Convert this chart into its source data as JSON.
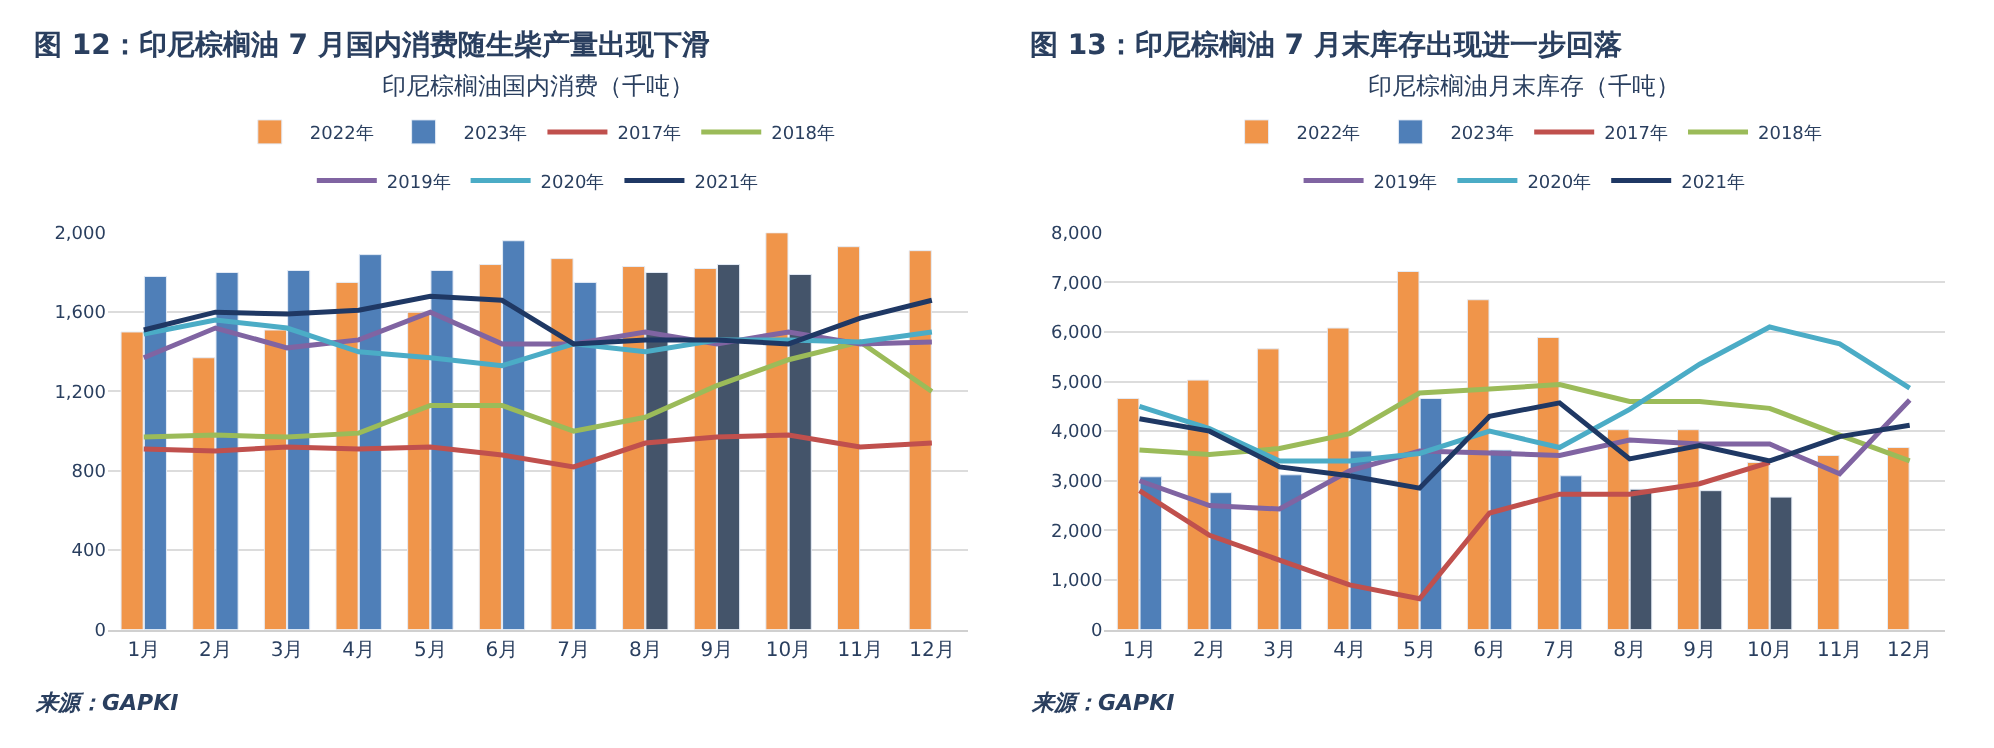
{
  "chart_data": [
    {
      "type": "bar",
      "title": "图 12：印尼棕榈油 7 月国内消费随生柴产量出现下滑",
      "subtitle": "印尼棕榈油国内消费（千吨）",
      "categories": [
        "1月",
        "2月",
        "3月",
        "4月",
        "5月",
        "6月",
        "7月",
        "8月",
        "9月",
        "10月",
        "11月",
        "12月"
      ],
      "series": [
        {
          "name": "2022年",
          "color": "#f0954a",
          "values": [
            1500,
            1370,
            1510,
            1750,
            1600,
            1840,
            1870,
            1830,
            1820,
            2000,
            1930,
            1910
          ]
        },
        {
          "name": "2023年",
          "color": "#4f7fb8",
          "colors": [
            "#4f7fb8",
            "#4f7fb8",
            "#4f7fb8",
            "#4f7fb8",
            "#4f7fb8",
            "#4f7fb8",
            "#4f7fb8",
            "#44546a",
            "#44546a",
            "#44546a",
            null,
            null
          ],
          "values": [
            1780,
            1800,
            1810,
            1890,
            1810,
            1960,
            1750,
            1800,
            1840,
            1790,
            null,
            null
          ]
        },
        {
          "name": "2017年",
          "type": "line",
          "color": "#c0504d",
          "values": [
            910,
            900,
            920,
            910,
            920,
            880,
            820,
            940,
            970,
            980,
            920,
            940
          ]
        },
        {
          "name": "2018年",
          "type": "line",
          "color": "#9bbb59",
          "values": [
            970,
            980,
            970,
            990,
            1130,
            1130,
            1000,
            1070,
            1230,
            1360,
            1450,
            1200
          ]
        },
        {
          "name": "2019年",
          "type": "line",
          "color": "#8064a2",
          "values": [
            1370,
            1520,
            1420,
            1460,
            1600,
            1440,
            1440,
            1500,
            1440,
            1500,
            1440,
            1450
          ]
        },
        {
          "name": "2020年",
          "type": "line",
          "color": "#4bacc6",
          "values": [
            1490,
            1560,
            1520,
            1400,
            1370,
            1330,
            1440,
            1400,
            1460,
            1460,
            1450,
            1500
          ]
        },
        {
          "name": "2021年",
          "type": "line",
          "color": "#1f3864",
          "values": [
            1510,
            1600,
            1590,
            1610,
            1680,
            1660,
            1440,
            1460,
            1460,
            1440,
            1570,
            1660
          ]
        }
      ],
      "ylim": [
        0,
        2000
      ],
      "yticks": [
        0,
        400,
        800,
        {
          "value": 1200,
          "label": "1,200"
        },
        {
          "value": 1600,
          "label": "1,600"
        },
        {
          "value": 2000,
          "label": "2,000"
        }
      ],
      "grid": "y",
      "legend": "top",
      "marker": "none",
      "line_style": "solid",
      "annotations": [
        "来源：GAPKI"
      ]
    },
    {
      "type": "bar",
      "title": "图 13：印尼棕榈油 7 月末库存出现进一步回落",
      "subtitle": "印尼棕榈油月末库存（千吨）",
      "categories": [
        "1月",
        "2月",
        "3月",
        "4月",
        "5月",
        "6月",
        "7月",
        "8月",
        "9月",
        "10月",
        "11月",
        "12月"
      ],
      "series": [
        {
          "name": "2022年",
          "color": "#f0954a",
          "values": [
            4660,
            5030,
            5660,
            6080,
            7220,
            6650,
            5890,
            4030,
            4030,
            3370,
            3510,
            3670
          ]
        },
        {
          "name": "2023年",
          "color": "#4f7fb8",
          "colors": [
            "#4f7fb8",
            "#4f7fb8",
            "#4f7fb8",
            "#4f7fb8",
            "#4f7fb8",
            "#4f7fb8",
            "#4f7fb8",
            "#44546a",
            "#44546a",
            "#44546a",
            null,
            null
          ],
          "values": [
            3080,
            2760,
            3120,
            3600,
            4660,
            3620,
            3100,
            2830,
            2800,
            2670,
            null,
            null
          ]
        },
        {
          "name": "2017年",
          "type": "line",
          "color": "#c0504d",
          "values": [
            2800,
            1900,
            1400,
            900,
            620,
            2350,
            2730,
            2730,
            2940,
            3370,
            null,
            null
          ]
        },
        {
          "name": "2018年",
          "type": "line",
          "color": "#9bbb59",
          "values": [
            3620,
            3530,
            3650,
            3950,
            4770,
            4850,
            4940,
            4600,
            4600,
            4460,
            3920,
            3400
          ]
        },
        {
          "name": "2019年",
          "type": "line",
          "color": "#8064a2",
          "values": [
            3000,
            2500,
            2430,
            3200,
            3600,
            3560,
            3510,
            3820,
            3740,
            3740,
            3140,
            4630
          ]
        },
        {
          "name": "2020年",
          "type": "line",
          "color": "#4bacc6",
          "values": [
            4500,
            4050,
            3400,
            3400,
            3550,
            4000,
            3670,
            4440,
            5350,
            6100,
            5760,
            4870
          ]
        },
        {
          "name": "2021年",
          "type": "line",
          "color": "#1f3864",
          "values": [
            4250,
            4000,
            3280,
            3100,
            2850,
            4300,
            4570,
            3440,
            3710,
            3400,
            3890,
            4120
          ]
        }
      ],
      "ylim": [
        0,
        8000
      ],
      "yticks": [
        0,
        {
          "value": 1000,
          "label": "1,000"
        },
        {
          "value": 2000,
          "label": "2,000"
        },
        {
          "value": 3000,
          "label": "3,000"
        },
        {
          "value": 4000,
          "label": "4,000"
        },
        {
          "value": 5000,
          "label": "5,000"
        },
        {
          "value": 6000,
          "label": "6,000"
        },
        {
          "value": 7000,
          "label": "7,000"
        },
        {
          "value": 8000,
          "label": "8,000"
        }
      ],
      "grid": "y",
      "legend": "top",
      "marker": "none",
      "line_style": "solid",
      "annotations": [
        "来源：GAPKI"
      ]
    }
  ]
}
